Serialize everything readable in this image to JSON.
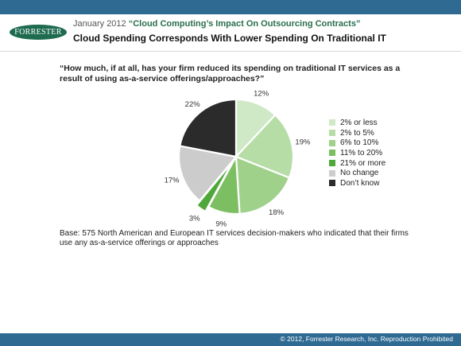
{
  "header": {
    "logo_text": "FORRESTER",
    "date": "January 2012",
    "report_title": "“Cloud Computing’s Impact On Outsourcing Contracts”",
    "title": "Cloud Spending Corresponds With Lower Spending On Traditional IT"
  },
  "chart_data": {
    "type": "pie",
    "title": "“How much, if at all, has your firm reduced its spending on traditional IT services as a result of using as-a-service offerings/approaches?”",
    "slices": [
      {
        "label": "2% or less",
        "value": 12,
        "display": "12%",
        "color": "#cfe8c5"
      },
      {
        "label": "2% to 5%",
        "value": 19,
        "display": "19%",
        "color": "#b6dda6"
      },
      {
        "label": "6% to 10%",
        "value": 18,
        "display": "18%",
        "color": "#9fd18b"
      },
      {
        "label": "11% to 20%",
        "value": 9,
        "display": "9%",
        "color": "#7cbf62"
      },
      {
        "label": "21% or more",
        "value": 3,
        "display": "3%",
        "color": "#4fa83a",
        "exploded": true
      },
      {
        "label": "No change",
        "value": 17,
        "display": "17%",
        "color": "#cccccc"
      },
      {
        "label": "Don’t know",
        "value": 22,
        "display": "22%",
        "color": "#2b2b2b"
      }
    ],
    "legend_position": "right",
    "base_note": "Base: 575 North American and European IT services decision-makers who indicated that their firms use any as-a-service offerings or approaches"
  },
  "footer": {
    "copyright": "© 2012, Forrester Research, Inc. Reproduction Prohibited"
  }
}
